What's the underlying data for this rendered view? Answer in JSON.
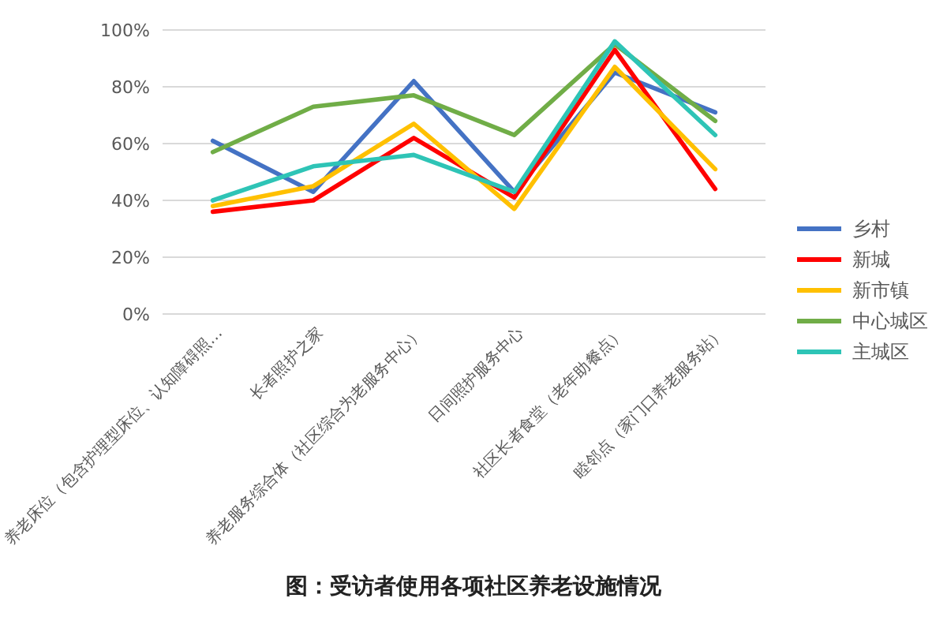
{
  "chart_data": {
    "type": "line",
    "title": "图：受访者使用各项社区养老设施情况",
    "categories": [
      "养老床位（包含护理型床位、认知障碍照…",
      "长者照护之家",
      "养老服务综合体（社区综合为老服务中心）",
      "日间照护服务中心",
      "社区长者食堂（老年助餐点）",
      "睦邻点（家门口养老服务站）"
    ],
    "series": [
      {
        "name": "乡村",
        "color": "#4472c4",
        "values": [
          61,
          43,
          82,
          43,
          85,
          71
        ]
      },
      {
        "name": "新城",
        "color": "#ff0000",
        "values": [
          36,
          40,
          62,
          41,
          93,
          44
        ]
      },
      {
        "name": "新市镇",
        "color": "#ffc000",
        "values": [
          38,
          45,
          67,
          37,
          87,
          51
        ]
      },
      {
        "name": "中心城区",
        "color": "#70ad47",
        "values": [
          57,
          73,
          77,
          63,
          95,
          68
        ]
      },
      {
        "name": "主城区",
        "color": "#2ec4b6",
        "values": [
          40,
          52,
          56,
          43,
          96,
          63
        ]
      }
    ],
    "ylim": [
      0,
      100
    ],
    "yticks": [
      {
        "value": 0,
        "label": "0%"
      },
      {
        "value": 20,
        "label": "20%"
      },
      {
        "value": 40,
        "label": "40%"
      },
      {
        "value": 60,
        "label": "60%"
      },
      {
        "value": 80,
        "label": "80%"
      },
      {
        "value": 100,
        "label": "100%"
      }
    ],
    "grid": "y",
    "legend": "right",
    "marker": "none",
    "line_style": "solid"
  }
}
